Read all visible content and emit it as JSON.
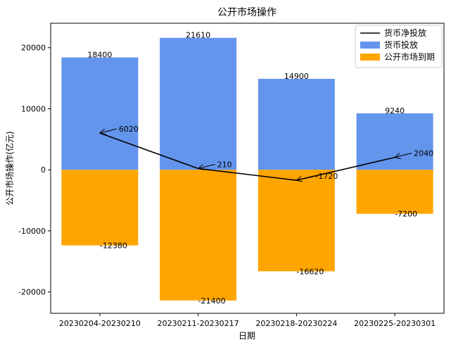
{
  "chart_data": {
    "type": "bar",
    "title": "公开市场操作",
    "xlabel": "日期",
    "ylabel": "公开市场操作(亿元)",
    "categories": [
      "20230204-20230210",
      "20230211-20230217",
      "20230218-20230224",
      "20230225-20230301"
    ],
    "series": [
      {
        "name": "货币投放",
        "type": "bar",
        "values": [
          18400,
          21610,
          14900,
          9240
        ],
        "color": "#6495ED"
      },
      {
        "name": "公开市场到期",
        "type": "bar",
        "values": [
          -12380,
          -21400,
          -16620,
          -7200
        ],
        "color": "#FFA500"
      },
      {
        "name": "货币净投放",
        "type": "line",
        "values": [
          6020,
          210,
          -1720,
          2040
        ],
        "color": "#000000"
      }
    ],
    "value_labels": {
      "injection": [
        "18400",
        "21610",
        "14900",
        "9240"
      ],
      "maturity": [
        "-12380",
        "-21400",
        "-16620",
        "-7200"
      ],
      "net": [
        "6020",
        "210",
        "-1720",
        "2040"
      ]
    },
    "ylim": [
      -23500,
      24000
    ],
    "yticks": [
      -20000,
      -10000,
      0,
      10000,
      20000
    ],
    "ytick_labels": [
      "-20000",
      "-10000",
      "0",
      "10000",
      "20000"
    ],
    "legend": {
      "position": "top-right",
      "entries": [
        "货币净投放",
        "货币投放",
        "公开市场到期"
      ]
    },
    "grid": false
  }
}
